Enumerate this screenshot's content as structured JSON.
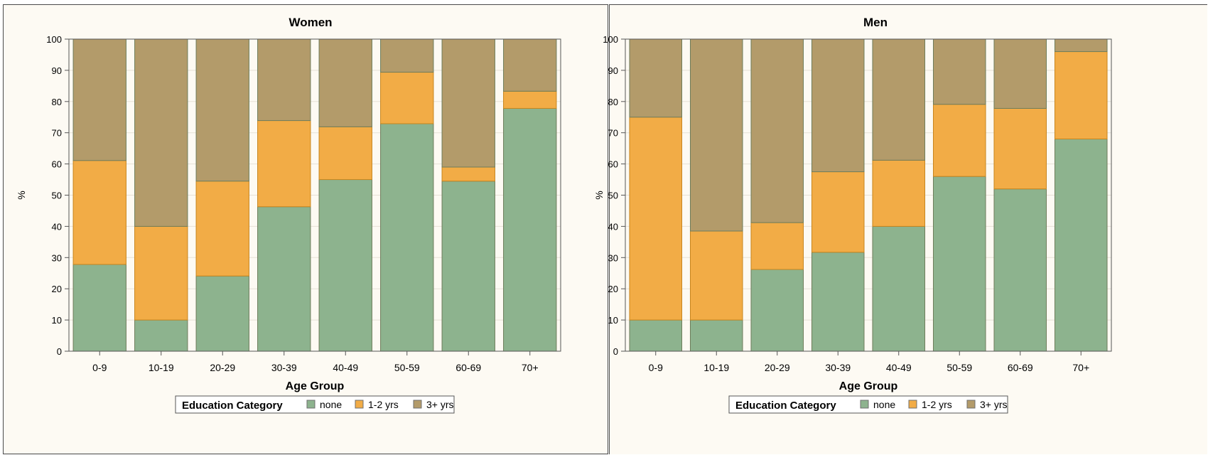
{
  "chart_data": [
    {
      "type": "bar",
      "stacked": true,
      "title": "Women",
      "xlabel": "Age Group",
      "ylabel": "%",
      "ylim": [
        0,
        100
      ],
      "yticks": [
        "0",
        "10",
        "20",
        "30",
        "40",
        "50",
        "60",
        "70",
        "80",
        "90",
        "100"
      ],
      "categories": [
        "0-9",
        "10-19",
        "20-29",
        "30-39",
        "40-49",
        "50-59",
        "60-69",
        "70+"
      ],
      "series": [
        {
          "name": "none",
          "color": "#8db38e",
          "values": [
            27.8,
            10.0,
            24.1,
            46.3,
            55.0,
            72.9,
            54.5,
            77.8
          ]
        },
        {
          "name": "1-2 yrs",
          "color": "#f2ac46",
          "values": [
            33.3,
            30.0,
            30.4,
            27.6,
            16.9,
            16.5,
            4.5,
            5.5
          ]
        },
        {
          "name": "3+ yrs",
          "color": "#b39b6a",
          "values": [
            38.9,
            60.0,
            45.5,
            26.1,
            28.1,
            10.6,
            41.0,
            16.7
          ]
        }
      ],
      "legend": {
        "title": "Education Category",
        "placement": "bottom"
      },
      "grid": true
    },
    {
      "type": "bar",
      "stacked": true,
      "title": "Men",
      "xlabel": "Age Group",
      "ylabel": "%",
      "ylim": [
        0,
        100
      ],
      "yticks": [
        "0",
        "10",
        "20",
        "30",
        "40",
        "50",
        "60",
        "70",
        "80",
        "90",
        "100"
      ],
      "categories": [
        "0-9",
        "10-19",
        "20-29",
        "30-39",
        "40-49",
        "50-59",
        "60-69",
        "70+"
      ],
      "series": [
        {
          "name": "none",
          "color": "#8db38e",
          "values": [
            10.0,
            10.0,
            26.2,
            31.7,
            40.0,
            56.0,
            52.0,
            68.0
          ]
        },
        {
          "name": "1-2 yrs",
          "color": "#f2ac46",
          "values": [
            65.0,
            28.5,
            15.0,
            25.8,
            21.2,
            23.1,
            25.8,
            28.0
          ]
        },
        {
          "name": "3+ yrs",
          "color": "#b39b6a",
          "values": [
            25.0,
            61.5,
            58.8,
            42.5,
            38.8,
            20.9,
            22.2,
            4.0
          ]
        }
      ],
      "legend": {
        "title": "Education Category",
        "placement": "bottom"
      },
      "grid": true
    }
  ]
}
